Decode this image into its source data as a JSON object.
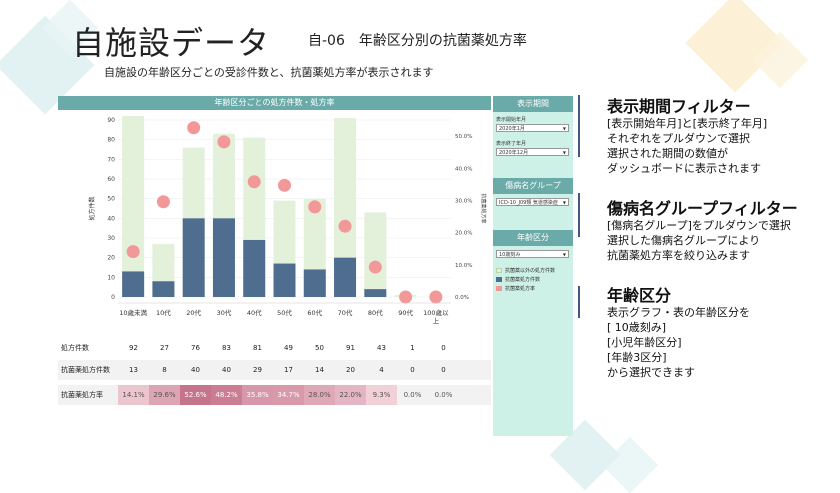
{
  "header": {
    "title": "自施設データ",
    "subtitle": "自-06　年齢区分別の抗菌薬処方率",
    "description": "自施設の年齢区分ごとの受診件数と、抗菌薬処方率が表示されます"
  },
  "chart_data": {
    "type": "bar",
    "title": "年齢区分ごとの処方件数・処方率",
    "categories": [
      "10歳未満",
      "10代",
      "20代",
      "30代",
      "40代",
      "50代",
      "60代",
      "70代",
      "80代",
      "90代",
      "100歳以上"
    ],
    "ylabel": "処方件数",
    "y2label": "抗菌薬処方率",
    "ylim": [
      0,
      90
    ],
    "y2lim": [
      0,
      0.55
    ],
    "yticks": [
      "0",
      "10",
      "20",
      "30",
      "40",
      "50",
      "60",
      "70",
      "80",
      "90"
    ],
    "y2ticks": [
      "0.0%",
      "10.0%",
      "20.0%",
      "30.0%",
      "40.0%",
      "50.0%"
    ],
    "series": [
      {
        "name": "抗菌薬以外の処方件数",
        "values": [
          92,
          27,
          76,
          83,
          81,
          49,
          50,
          91,
          43,
          1,
          0
        ]
      },
      {
        "name": "抗菌薬処方件数",
        "values": [
          13,
          8,
          40,
          40,
          29,
          17,
          14,
          20,
          4,
          0,
          0
        ]
      },
      {
        "name": "抗菌薬処方率",
        "values": [
          0.141,
          0.296,
          0.526,
          0.482,
          0.358,
          0.347,
          0.28,
          0.22,
          0.093,
          0.0,
          0.0
        ]
      }
    ],
    "colors": {
      "total": "#e3f0da",
      "antibiotic": "#4f6d8f",
      "rate": "#f29899"
    }
  },
  "table": {
    "rows": [
      {
        "label": "処方件数",
        "cells": [
          "92",
          "27",
          "76",
          "83",
          "81",
          "49",
          "50",
          "91",
          "43",
          "1",
          "0"
        ]
      },
      {
        "label": "抗菌薬処方件数",
        "cells": [
          "13",
          "8",
          "40",
          "40",
          "29",
          "17",
          "14",
          "20",
          "4",
          "0",
          "0"
        ]
      },
      {
        "label": "抗菌薬処方率",
        "cells": [
          "14.1%",
          "29.6%",
          "52.6%",
          "48.2%",
          "35.8%",
          "34.7%",
          "28.0%",
          "22.0%",
          "9.3%",
          "0.0%",
          "0.0%"
        ],
        "rates": [
          0.141,
          0.296,
          0.526,
          0.482,
          0.358,
          0.347,
          0.28,
          0.22,
          0.093,
          0.0,
          0.0
        ]
      }
    ]
  },
  "panel": {
    "period": {
      "header": "表示期間",
      "start_label": "表示開始年月",
      "start_value": "2020年1月",
      "end_label": "表示終了年月",
      "end_value": "2020年12月"
    },
    "disease": {
      "header": "傷病名グループ",
      "value": "ICD-10_J09類 気道感染症"
    },
    "age": {
      "header": "年齢区分",
      "value": "10歳刻み"
    },
    "legend": [
      {
        "label": "抗菌薬以外の処方件数",
        "color": "#e3f0da"
      },
      {
        "label": "抗菌薬処方件数",
        "color": "#4f6d8f"
      },
      {
        "label": "抗菌薬処方率",
        "color": "#f29899"
      }
    ]
  },
  "annotations": [
    {
      "heading": "表示期間フィルター",
      "lines": [
        "[表示開始年月]と[表示終了年月]",
        "それぞれをプルダウンで選択",
        "選択された期間の数値が",
        "ダッシュボードに表示されます"
      ]
    },
    {
      "heading": "傷病名グループフィルター",
      "lines": [
        "[傷病名グループ]をプルダウンで選択",
        "選択した傷病名グループにより",
        "抗菌薬処方率を絞り込みます"
      ]
    },
    {
      "heading": "年齢区分",
      "lines": [
        "表示グラフ・表の年齢区分を",
        "[ 10歳刻み]",
        "[小児年齢区分]",
        "[年齢3区分]",
        "から選択できます"
      ]
    }
  ]
}
